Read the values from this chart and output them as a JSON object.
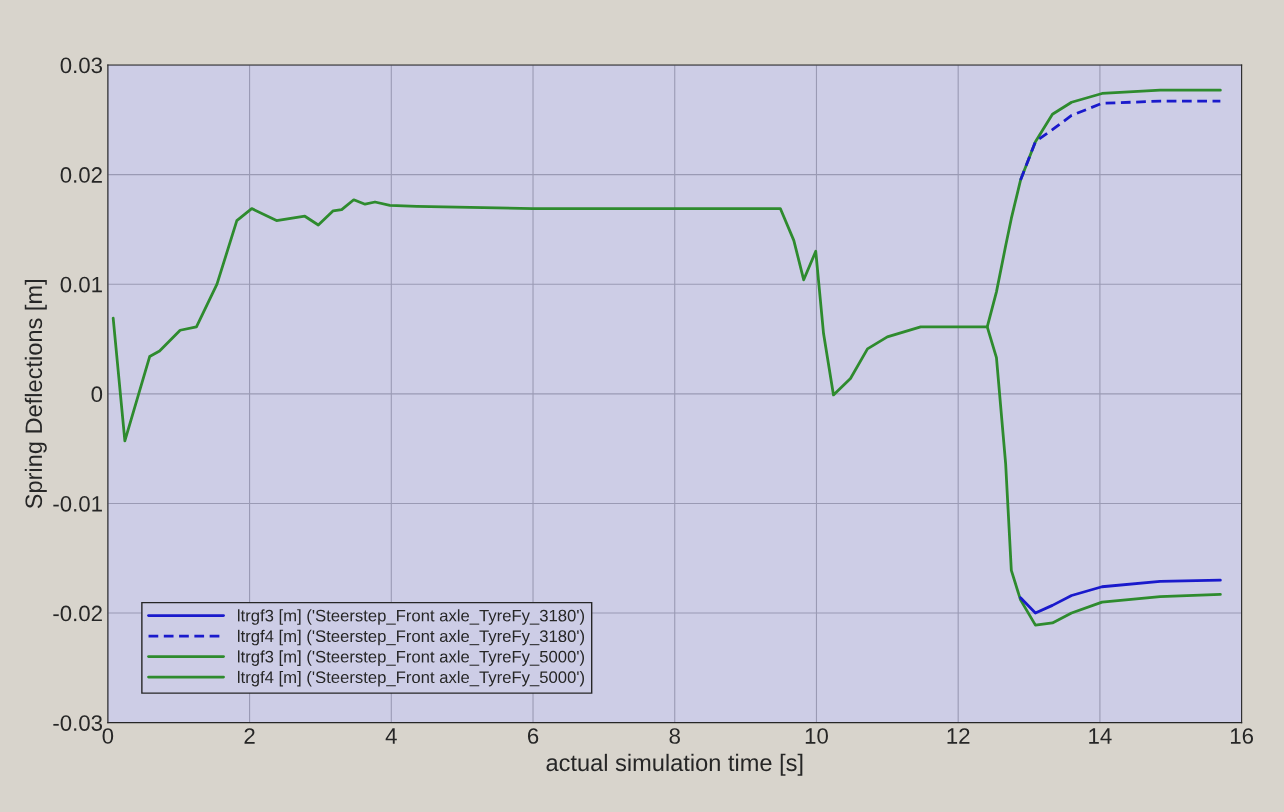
{
  "chart_data": {
    "type": "line",
    "xlabel": "actual simulation time [s]",
    "ylabel": "Spring Deflections [m]",
    "x": [
      0.075,
      0.24,
      0.59,
      0.73,
      1.02,
      1.25,
      1.54,
      1.82,
      2.03,
      2.38,
      2.78,
      2.97,
      3.18,
      3.3,
      3.47,
      3.63,
      3.77,
      3.98,
      4.36,
      6.0,
      8.0,
      9.49,
      9.68,
      9.82,
      9.99,
      10.1,
      10.24,
      10.48,
      10.72,
      11.0,
      11.47,
      12.03,
      12.41,
      12.54,
      12.67,
      12.75,
      12.88,
      13.09,
      13.33,
      13.6,
      14.03,
      14.85,
      15.7
    ],
    "series": [
      {
        "name": "ltrgf3 [m] ('Steerstep_Front axle_TyreFy_3180')",
        "color": "#1a1acc",
        "line_style": "solid",
        "values": [
          null,
          null,
          null,
          null,
          null,
          null,
          null,
          null,
          null,
          null,
          null,
          null,
          null,
          null,
          null,
          null,
          null,
          null,
          null,
          null,
          null,
          null,
          null,
          null,
          null,
          null,
          null,
          null,
          null,
          null,
          null,
          null,
          null,
          null,
          null,
          null,
          -0.0186,
          -0.02,
          -0.0193,
          -0.0184,
          -0.0176,
          -0.0171,
          -0.017
        ]
      },
      {
        "name": "ltrgf4 [m] ('Steerstep_Front axle_TyreFy_3180')",
        "color": "#1a1acc",
        "line_style": "dashed",
        "values": [
          null,
          null,
          null,
          null,
          null,
          null,
          null,
          null,
          null,
          null,
          null,
          null,
          null,
          null,
          null,
          null,
          null,
          null,
          null,
          null,
          null,
          null,
          null,
          null,
          null,
          null,
          null,
          null,
          null,
          null,
          null,
          null,
          null,
          null,
          null,
          null,
          0.0195,
          0.023,
          0.0241,
          0.0254,
          0.0265,
          0.0267,
          0.0267
        ]
      },
      {
        "name": "ltrgf3 [m] ('Steerstep_Front axle_TyreFy_5000')",
        "color": "#2e8b2e",
        "line_style": "solid",
        "values": [
          null,
          null,
          null,
          null,
          null,
          null,
          null,
          null,
          null,
          null,
          null,
          null,
          null,
          null,
          null,
          null,
          null,
          null,
          null,
          null,
          null,
          null,
          null,
          null,
          null,
          null,
          null,
          null,
          null,
          null,
          null,
          null,
          0.0061,
          0.0033,
          -0.0064,
          -0.0161,
          -0.0188,
          -0.0211,
          -0.0209,
          -0.02,
          -0.019,
          -0.0185,
          -0.0183
        ]
      },
      {
        "name": "ltrgf4 [m] ('Steerstep_Front axle_TyreFy_5000')",
        "color": "#2e8b2e",
        "line_style": "solid",
        "values": [
          0.0069,
          -0.0043,
          0.0034,
          0.0039,
          0.0058,
          0.0061,
          0.01,
          0.0158,
          0.0169,
          0.0158,
          0.0162,
          0.0154,
          0.0167,
          0.0168,
          0.0177,
          0.0173,
          0.0175,
          0.0172,
          0.0171,
          0.0169,
          0.0169,
          0.0169,
          0.014,
          0.0104,
          0.013,
          0.0055,
          -0.0001,
          0.0014,
          0.0041,
          0.0052,
          0.0061,
          0.0061,
          0.0061,
          0.0093,
          0.0135,
          0.016,
          0.0195,
          0.023,
          0.0255,
          0.0266,
          0.0274,
          0.0277,
          0.0277
        ]
      }
    ],
    "xlim": [
      0,
      16
    ],
    "xticks": [
      0,
      2,
      4,
      6,
      8,
      10,
      12,
      14,
      16
    ],
    "ylim": [
      -0.03,
      0.03
    ],
    "yticks": [
      -0.03,
      -0.02,
      -0.01,
      0,
      0.01,
      0.02,
      0.03
    ],
    "grid": true,
    "legend": "bottom left"
  }
}
